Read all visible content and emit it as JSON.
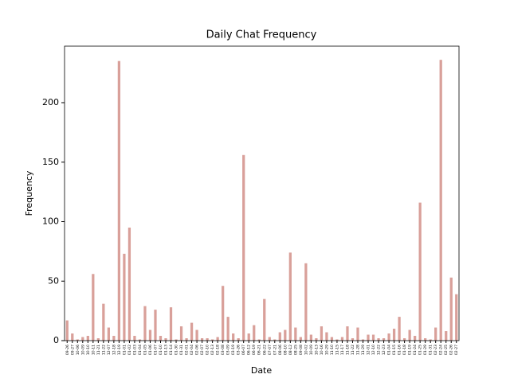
{
  "chart_data": {
    "type": "bar",
    "title": "Daily Chat Frequency",
    "x_label": "Date",
    "y_label": "Frequency",
    "categories": [
      "09-26",
      "09-27",
      "10-06",
      "10-09",
      "10-10",
      "10-11",
      "11-21",
      "11-22",
      "12-07",
      "12-18",
      "12-19",
      "01-01",
      "01-02",
      "01-03",
      "01-04",
      "01-05",
      "01-06",
      "01-07",
      "01-10",
      "01-13",
      "01-14",
      "01-30",
      "01-31",
      "02-01",
      "02-04",
      "02-06",
      "02-07",
      "02-10",
      "02-13",
      "02-18",
      "03-08",
      "03-09",
      "03-19",
      "03-26",
      "06-07",
      "06-12",
      "06-19",
      "06-21",
      "06-22",
      "07-07",
      "07-21",
      "08-06",
      "08-10",
      "08-12",
      "08-25",
      "09-08",
      "10-02",
      "10-09",
      "10-13",
      "10-16",
      "10-29",
      "11-10",
      "11-15",
      "11-17",
      "11-18",
      "11-22",
      "11-28",
      "11-29",
      "12-01",
      "12-10",
      "12-22",
      "12-23",
      "01-04",
      "01-15",
      "01-16",
      "01-18",
      "01-19",
      "01-24",
      "01-25",
      "01-29",
      "01-31",
      "02-23",
      "02-24",
      "02-25",
      "02-26",
      "02-27"
    ],
    "values": [
      17,
      6,
      1,
      3,
      4,
      56,
      2,
      31,
      11,
      4,
      235,
      73,
      95,
      4,
      1,
      29,
      9,
      26,
      4,
      2,
      28,
      1,
      12,
      2,
      15,
      9,
      2,
      2,
      1,
      3,
      46,
      20,
      6,
      2,
      156,
      6,
      13,
      1,
      35,
      3,
      1,
      7,
      9,
      74,
      11,
      3,
      65,
      5,
      2,
      12,
      7,
      3,
      1,
      3,
      12,
      2,
      11,
      1,
      5,
      5,
      2,
      2,
      6,
      10,
      20,
      2,
      9,
      4,
      116,
      2,
      1,
      11,
      236,
      8,
      53,
      39
    ],
    "color": "#d9a09a",
    "ylim": [
      0,
      247.5
    ],
    "yticks": [
      0,
      50,
      100,
      150,
      200
    ]
  }
}
